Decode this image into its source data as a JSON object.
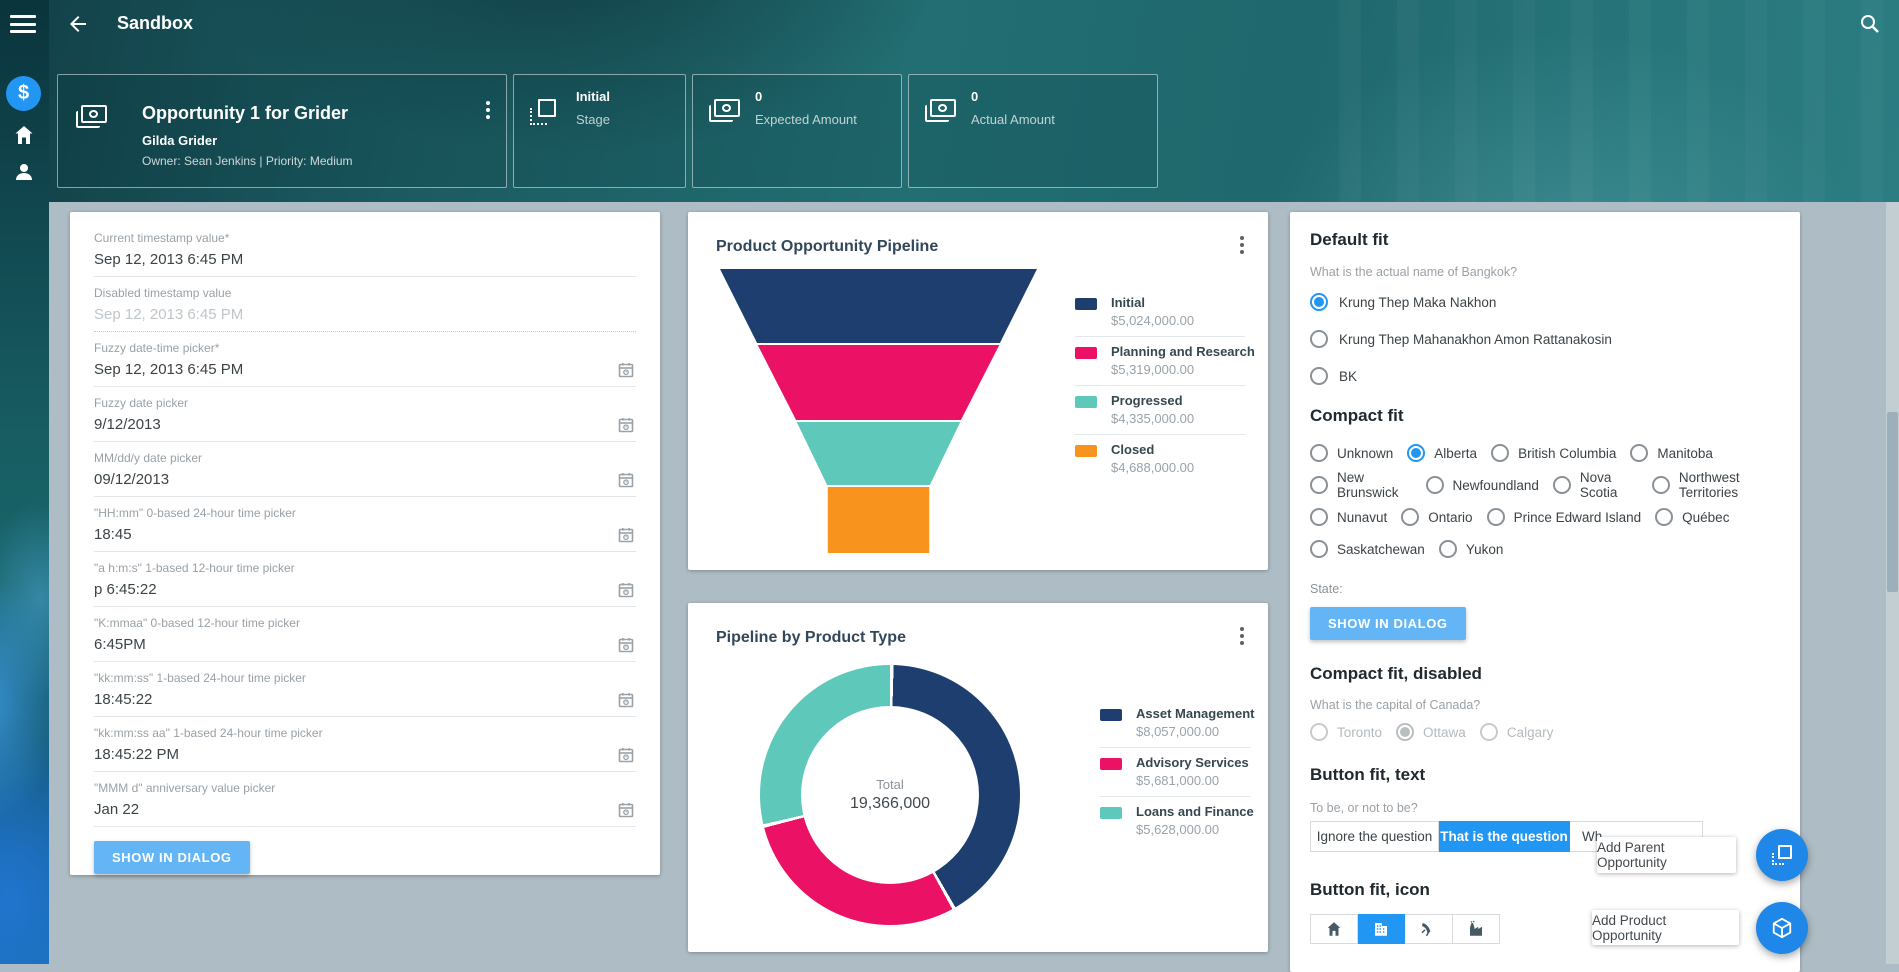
{
  "app_bar": {
    "title": "Sandbox"
  },
  "header": {
    "opportunity": {
      "title": "Opportunity 1 for Grider",
      "name": "Gilda Grider",
      "meta": "Owner: Sean Jenkins | Priority: Medium"
    },
    "stats": [
      {
        "icon": "stage-icon",
        "value": "Initial",
        "label": "Stage"
      },
      {
        "icon": "money-icon",
        "value": "0",
        "label": "Expected Amount"
      },
      {
        "icon": "money-icon",
        "value": "0",
        "label": "Actual Amount"
      }
    ]
  },
  "pickers": {
    "fields": [
      {
        "label": "Current timestamp value*",
        "value": "Sep 12, 2013 6:45 PM",
        "calendar_icon": false,
        "disabled": false
      },
      {
        "label": "Disabled timestamp value",
        "value": "Sep 12, 2013 6:45 PM",
        "calendar_icon": false,
        "disabled": true
      },
      {
        "label": "Fuzzy date-time picker*",
        "value": "Sep 12, 2013 6:45 PM",
        "calendar_icon": true,
        "disabled": false
      },
      {
        "label": "Fuzzy date picker",
        "value": "9/12/2013",
        "calendar_icon": true,
        "disabled": false
      },
      {
        "label": "MM/dd/y date picker",
        "value": "09/12/2013",
        "calendar_icon": true,
        "disabled": false
      },
      {
        "label": "\"HH:mm\" 0-based 24-hour time picker",
        "value": "18:45",
        "calendar_icon": true,
        "disabled": false
      },
      {
        "label": "\"a h:m:s\" 1-based 12-hour time picker",
        "value": "p 6:45:22",
        "calendar_icon": true,
        "disabled": false
      },
      {
        "label": "\"K:mmaa\" 0-based 12-hour time picker",
        "value": "6:45PM",
        "calendar_icon": true,
        "disabled": false
      },
      {
        "label": "\"kk:mm:ss\" 1-based 24-hour time picker",
        "value": "18:45:22",
        "calendar_icon": true,
        "disabled": false
      },
      {
        "label": "\"kk:mm:ss aa\" 1-based 24-hour time picker",
        "value": "18:45:22 PM",
        "calendar_icon": true,
        "disabled": false
      },
      {
        "label": "\"MMM d\" anniversary value picker",
        "value": "Jan 22",
        "calendar_icon": true,
        "disabled": false
      }
    ],
    "button": "SHOW IN DIALOG"
  },
  "chart_data": [
    {
      "type": "funnel",
      "title": "Product Opportunity Pipeline",
      "categories": [
        "Initial",
        "Planning and Research",
        "Progressed",
        "Closed"
      ],
      "values": [
        5024000,
        5319000,
        4335000,
        4688000
      ],
      "value_labels": [
        "$5,024,000.00",
        "$5,319,000.00",
        "$4,335,000.00",
        "$4,688,000.00"
      ],
      "colors": [
        "#1d3e6e",
        "#eb1164",
        "#5ec8ba",
        "#f8941d"
      ],
      "legend_position": "right"
    },
    {
      "type": "pie",
      "title": "Pipeline by Product Type",
      "center_label": "Total",
      "center_value": "19,366,000",
      "categories": [
        "Asset Management",
        "Advisory Services",
        "Loans and Finance"
      ],
      "values": [
        8057000,
        5681000,
        5628000
      ],
      "value_labels": [
        "$8,057,000.00",
        "$5,681,000.00",
        "$5,628,000.00"
      ],
      "colors": [
        "#1d3e6e",
        "#eb1164",
        "#5ec8ba"
      ],
      "legend_position": "right"
    }
  ],
  "panel": {
    "default_fit": {
      "heading": "Default fit",
      "question": "What is the actual name of Bangkok?",
      "options": [
        {
          "label": "Krung Thep Maka Nakhon",
          "selected": true
        },
        {
          "label": "Krung Thep Mahanakhon Amon Rattanakosin",
          "selected": false
        },
        {
          "label": "BK",
          "selected": false
        }
      ]
    },
    "compact_fit": {
      "heading": "Compact fit",
      "options": [
        {
          "label": "Unknown",
          "selected": false
        },
        {
          "label": "Alberta",
          "selected": true
        },
        {
          "label": "British Columbia",
          "selected": false
        },
        {
          "label": "Manitoba",
          "selected": false
        },
        {
          "label": "New Brunswick",
          "selected": false
        },
        {
          "label": "Newfoundland",
          "selected": false
        },
        {
          "label": "Nova Scotia",
          "selected": false
        },
        {
          "label": "Northwest Territories",
          "selected": false
        },
        {
          "label": "Nunavut",
          "selected": false
        },
        {
          "label": "Ontario",
          "selected": false
        },
        {
          "label": "Prince Edward Island",
          "selected": false
        },
        {
          "label": "Québec",
          "selected": false
        },
        {
          "label": "Saskatchewan",
          "selected": false
        },
        {
          "label": "Yukon",
          "selected": false
        }
      ],
      "state_label": "State:",
      "button": "SHOW IN DIALOG"
    },
    "compact_fit_disabled": {
      "heading": "Compact fit, disabled",
      "question": "What is the capital of Canada?",
      "options": [
        {
          "label": "Toronto",
          "selected": false
        },
        {
          "label": "Ottawa",
          "selected": true
        },
        {
          "label": "Calgary",
          "selected": false
        }
      ]
    },
    "button_fit_text": {
      "heading": "Button fit, text",
      "question": "To be, or not to be?",
      "segments": [
        {
          "label": "Ignore the question",
          "selected": false
        },
        {
          "label": "That is the question",
          "selected": true
        },
        {
          "label": "Wh",
          "selected": false
        }
      ]
    },
    "button_fit_icon": {
      "heading": "Button fit, icon",
      "icons": [
        "home-icon",
        "office-building-icon",
        "satellite-dish-icon",
        "factory-icon"
      ],
      "selected": "office-building-icon"
    }
  },
  "fabs": [
    {
      "label": "Add Parent Opportunity",
      "icon": "flip-to-front-icon"
    },
    {
      "label": "Add Product Opportunity",
      "icon": "package-icon"
    }
  ],
  "colors": {
    "accent": "#2196f3",
    "light_button": "#64b5f6",
    "fab": "#1e87e8",
    "page_bg": "#aebdc5"
  }
}
